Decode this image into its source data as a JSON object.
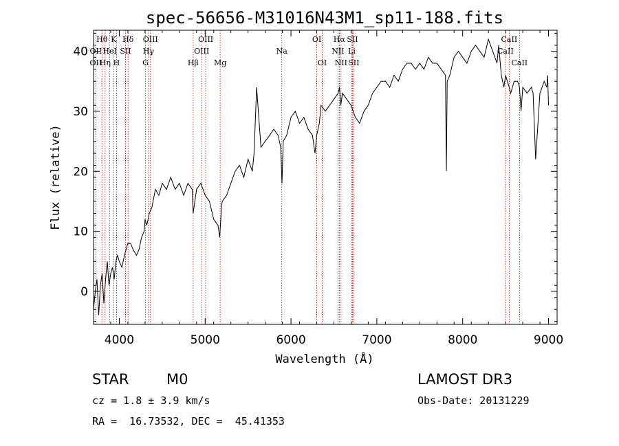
{
  "chart_data": {
    "type": "line",
    "title": "spec-56656-M31016N43M1_sp11-188.fits",
    "xlabel": "Wavelength (Å)",
    "ylabel": "Flux (relative)",
    "xlim": [
      3700,
      9100
    ],
    "ylim": [
      -5.5,
      43.5
    ],
    "x_ticks": [
      4000,
      5000,
      6000,
      7000,
      8000,
      9000
    ],
    "y_ticks": [
      0,
      10,
      20,
      30,
      40
    ],
    "series": [
      {
        "name": "flux",
        "x": [
          3700,
          3720,
          3740,
          3760,
          3780,
          3800,
          3820,
          3840,
          3860,
          3880,
          3900,
          3920,
          3940,
          3960,
          3980,
          4000,
          4030,
          4060,
          4080,
          4100,
          4130,
          4160,
          4200,
          4230,
          4260,
          4290,
          4300,
          4320,
          4350,
          4380,
          4420,
          4460,
          4500,
          4550,
          4600,
          4650,
          4700,
          4750,
          4800,
          4850,
          4860,
          4880,
          4900,
          4950,
          5000,
          5050,
          5100,
          5150,
          5170,
          5190,
          5200,
          5250,
          5300,
          5350,
          5400,
          5450,
          5500,
          5550,
          5570,
          5600,
          5650,
          5700,
          5750,
          5800,
          5850,
          5880,
          5895,
          5910,
          5950,
          6000,
          6050,
          6100,
          6150,
          6200,
          6250,
          6280,
          6300,
          6330,
          6350,
          6400,
          6450,
          6500,
          6550,
          6565,
          6580,
          6600,
          6650,
          6700,
          6750,
          6800,
          6850,
          6900,
          6950,
          7000,
          7050,
          7100,
          7150,
          7200,
          7250,
          7300,
          7350,
          7400,
          7450,
          7500,
          7550,
          7600,
          7650,
          7700,
          7750,
          7800,
          7810,
          7820,
          7850,
          7900,
          7950,
          8000,
          8050,
          8100,
          8150,
          8200,
          8250,
          8300,
          8350,
          8400,
          8420,
          8450,
          8480,
          8500,
          8520,
          8542,
          8560,
          8600,
          8640,
          8662,
          8680,
          8700,
          8750,
          8800,
          8820,
          8850,
          8900,
          8950,
          8980,
          8990,
          9000
        ],
        "values": [
          -3,
          0,
          2,
          -4,
          1,
          3,
          -2,
          2,
          5,
          1,
          3,
          4,
          2,
          5,
          6,
          5,
          4,
          6,
          7,
          8,
          8,
          7,
          6,
          7,
          9,
          10,
          12,
          11,
          13,
          14,
          17,
          16,
          18,
          17,
          19,
          17,
          18,
          16,
          18,
          17,
          13,
          15,
          17,
          18,
          16,
          15,
          12,
          11,
          9,
          14,
          15,
          16,
          18,
          20,
          21,
          19,
          22,
          20,
          23,
          34,
          24,
          25,
          26,
          27,
          26,
          24,
          18,
          25,
          26,
          29,
          30,
          28,
          29,
          27,
          26,
          23,
          26,
          28,
          31,
          30,
          31,
          32,
          33,
          34,
          31,
          33,
          32,
          31,
          29,
          28,
          30,
          31,
          33,
          34,
          35,
          35,
          34,
          36,
          35,
          37,
          38,
          38,
          37,
          38,
          37,
          39,
          38,
          38,
          37,
          36,
          20,
          35,
          36,
          39,
          40,
          39,
          38,
          40,
          41,
          40,
          39,
          42,
          40,
          38,
          41,
          36,
          34,
          36,
          35,
          34,
          33,
          35,
          35,
          34,
          30,
          34,
          33,
          34,
          33,
          22,
          33,
          35,
          34,
          36,
          31
        ]
      }
    ],
    "line_markers": [
      {
        "label": "Hθ",
        "wavelength": 3798,
        "row": 1
      },
      {
        "label": "K",
        "wavelength": 3934,
        "row": 1
      },
      {
        "label": "Hδ",
        "wavelength": 4102,
        "row": 1
      },
      {
        "label": "OIII",
        "wavelength": 4363,
        "row": 1
      },
      {
        "label": "OIII",
        "wavelength": 5007,
        "row": 1
      },
      {
        "label": "OI",
        "wavelength": 6300,
        "row": 1
      },
      {
        "label": "Hα",
        "wavelength": 6563,
        "row": 1
      },
      {
        "label": "SII",
        "wavelength": 6716,
        "row": 1
      },
      {
        "label": "CaII",
        "wavelength": 8542,
        "row": 1
      },
      {
        "label": "OII",
        "wavelength": 3727,
        "row": 2
      },
      {
        "label": "HeI",
        "wavelength": 3889,
        "row": 2
      },
      {
        "label": "SII",
        "wavelength": 4072,
        "row": 2
      },
      {
        "label": "Hγ",
        "wavelength": 4340,
        "row": 2
      },
      {
        "label": "OIII",
        "wavelength": 4959,
        "row": 2
      },
      {
        "label": "Na",
        "wavelength": 5893,
        "row": 2
      },
      {
        "label": "NII",
        "wavelength": 6548,
        "row": 2
      },
      {
        "label": "Li",
        "wavelength": 6708,
        "row": 2
      },
      {
        "label": "CaII",
        "wavelength": 8498,
        "row": 2
      },
      {
        "label": "OII",
        "wavelength": 3727,
        "row": 3
      },
      {
        "label": "Hη",
        "wavelength": 3835,
        "row": 3
      },
      {
        "label": "H",
        "wavelength": 3968,
        "row": 3
      },
      {
        "label": "G",
        "wavelength": 4305,
        "row": 3
      },
      {
        "label": "Hβ",
        "wavelength": 4861,
        "row": 3
      },
      {
        "label": "Mg",
        "wavelength": 5175,
        "row": 3
      },
      {
        "label": "OI",
        "wavelength": 6364,
        "row": 3
      },
      {
        "label": "NII",
        "wavelength": 6583,
        "row": 3
      },
      {
        "label": "SII",
        "wavelength": 6731,
        "row": 3
      },
      {
        "label": "CaII",
        "wavelength": 8662,
        "row": 3
      }
    ],
    "marker_color": "#c00000"
  },
  "info": {
    "object_class": "STAR",
    "subclass": "M0",
    "survey": "LAMOST DR3",
    "cz": "cz = 1.8 ± 3.9 km/s",
    "obs_date": "Obs-Date: 20131229",
    "coords": "RA =  16.73532, DEC =  45.41353"
  }
}
